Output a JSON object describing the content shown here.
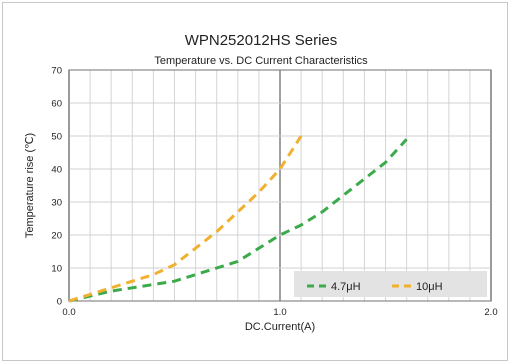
{
  "chart_data": {
    "type": "line",
    "title": "WPN252012HS Series",
    "subtitle": "Temperature vs. DC Current Characteristics",
    "xlabel": "DC.Current(A)",
    "ylabel": "Temperature rise (℃)",
    "xlim": [
      0,
      2.0
    ],
    "ylim": [
      0,
      70
    ],
    "x_ticks": [
      "0.0",
      "1.0",
      "2.0"
    ],
    "y_ticks": [
      "0",
      "10",
      "20",
      "30",
      "40",
      "50",
      "60",
      "70"
    ],
    "grid": true,
    "legend_position": "bottom-right",
    "series": [
      {
        "name": "4.7μH",
        "color": "#3aaa4a",
        "x": [
          0.0,
          0.1,
          0.2,
          0.3,
          0.4,
          0.5,
          0.6,
          0.7,
          0.8,
          0.9,
          1.0,
          1.1,
          1.2,
          1.3,
          1.4,
          1.5,
          1.6
        ],
        "y": [
          0,
          1.5,
          3,
          4,
          5,
          6,
          8,
          10,
          12,
          16,
          20,
          23,
          27,
          32,
          37,
          42,
          49
        ]
      },
      {
        "name": "10μH",
        "color": "#f0b030",
        "x": [
          0.0,
          0.1,
          0.2,
          0.3,
          0.4,
          0.5,
          0.6,
          0.7,
          0.8,
          0.9,
          1.0,
          1.05,
          1.1
        ],
        "y": [
          0,
          2,
          4,
          6,
          8,
          11,
          16,
          21,
          27,
          33,
          40,
          45,
          50
        ]
      }
    ]
  }
}
